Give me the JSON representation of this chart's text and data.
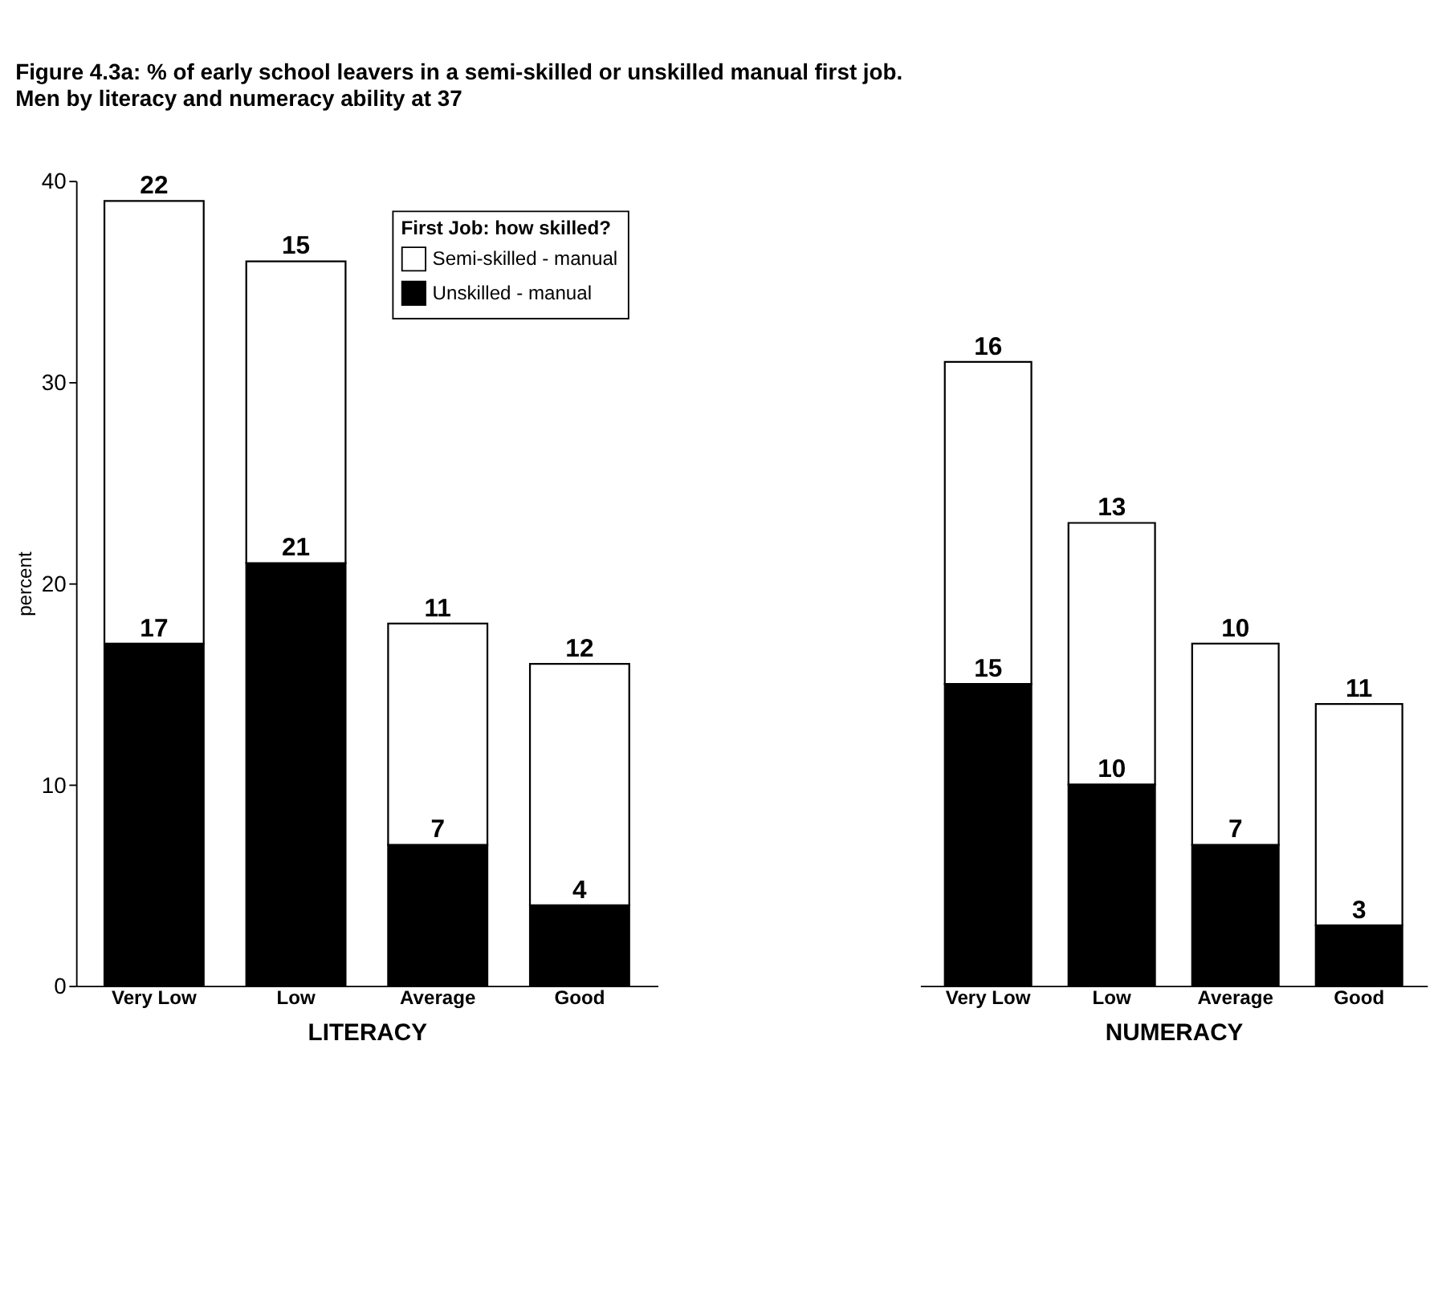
{
  "chart_data": [
    {
      "type": "bar",
      "title": "Figure 4.3a: % of early school leavers in a semi-skilled or unskilled manual first job.",
      "subtitle": "Men by literacy and numeracy ability at 37",
      "xlabel": "LITERACY",
      "ylabel": "percent",
      "legend_title": "First Job: how skilled?",
      "legend": "top right",
      "stacked": true,
      "data_labels": true,
      "grid": false,
      "categories": [
        "Very Low",
        "Low",
        "Average",
        "Good"
      ],
      "ylim": [
        0,
        40
      ],
      "yticks": [
        0,
        10,
        20,
        30,
        40
      ],
      "series": [
        {
          "name": "Unskilled - manual",
          "color": "#000000",
          "values": [
            17,
            21,
            7,
            4
          ]
        },
        {
          "name": "Semi-skilled - manual",
          "color": "#ffffff",
          "values": [
            22,
            15,
            11,
            12
          ]
        }
      ]
    },
    {
      "type": "bar",
      "xlabel": "NUMERACY",
      "stacked": true,
      "data_labels": true,
      "grid": false,
      "tick_labels": "x",
      "legend": false,
      "categories": [
        "Very Low",
        "Low",
        "Average",
        "Good"
      ],
      "ylim": [
        0,
        40
      ],
      "series": [
        {
          "color": "#000000",
          "values": [
            15,
            10,
            7,
            3
          ]
        },
        {
          "color": "#ffffff",
          "values": [
            16,
            13,
            10,
            11
          ]
        }
      ]
    }
  ]
}
